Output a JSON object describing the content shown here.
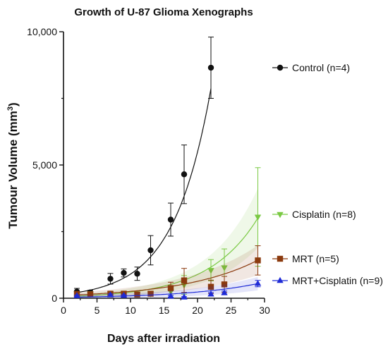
{
  "chart_data": {
    "type": "scatter",
    "title": "Growth of U-87 Glioma Xenographs",
    "xlabel": "Days after irradiation",
    "ylabel_main": "Tumour Volume  (mm",
    "ylabel_sup": "3",
    "ylabel_close": ")",
    "xlim": [
      0,
      30
    ],
    "ylim": [
      0,
      10000
    ],
    "xticks": [
      0,
      5,
      10,
      15,
      20,
      25,
      30
    ],
    "xtick_labels": [
      "0",
      "5",
      "10",
      "15",
      "20",
      "25",
      "30"
    ],
    "yticks": [
      0,
      5000,
      10000
    ],
    "ytick_labels": [
      "0",
      "5,000",
      "10,000"
    ],
    "grid": false,
    "legend_position": "right",
    "series": [
      {
        "name": "Control (n=4)",
        "color": "#111111",
        "marker": "circle",
        "x": [
          2,
          4,
          7,
          9,
          11,
          13,
          16,
          18,
          22
        ],
        "y": [
          250,
          220,
          730,
          950,
          920,
          1800,
          2950,
          4650,
          8650
        ],
        "err": [
          120,
          80,
          200,
          150,
          250,
          550,
          620,
          1100,
          1150
        ],
        "fit": {
          "a": 150,
          "b": 0.18
        }
      },
      {
        "name": "Cisplatin (n=8)",
        "color": "#7ac943",
        "marker": "triangle-down",
        "x": [
          2,
          4,
          7,
          9,
          11,
          13,
          16,
          18,
          22,
          24,
          29
        ],
        "y": [
          170,
          180,
          180,
          180,
          150,
          170,
          250,
          500,
          1050,
          1150,
          3050
        ],
        "err": [
          60,
          60,
          50,
          50,
          50,
          60,
          150,
          350,
          400,
          700,
          1850
        ],
        "fit": {
          "a": 60,
          "b": 0.135
        }
      },
      {
        "name": "MRT (n=5)",
        "color": "#8b3a0e",
        "marker": "square",
        "x": [
          2,
          4,
          7,
          9,
          11,
          13,
          16,
          18,
          22,
          24,
          29
        ],
        "y": [
          160,
          150,
          170,
          170,
          140,
          170,
          380,
          670,
          430,
          520,
          1420
        ],
        "err": [
          60,
          50,
          50,
          50,
          50,
          60,
          220,
          450,
          250,
          300,
          550
        ],
        "fit": {
          "a": 105,
          "b": 0.09
        }
      },
      {
        "name": "MRT+Cisplatin (n=9)",
        "color": "#1f2bd6",
        "marker": "triangle-up",
        "x": [
          2,
          7,
          9,
          16,
          18,
          22,
          24,
          29
        ],
        "y": [
          90,
          120,
          100,
          70,
          40,
          150,
          200,
          550
        ],
        "err": [
          30,
          40,
          30,
          30,
          20,
          60,
          70,
          120
        ],
        "fit": {
          "a": 35,
          "b": 0.095
        }
      }
    ]
  }
}
